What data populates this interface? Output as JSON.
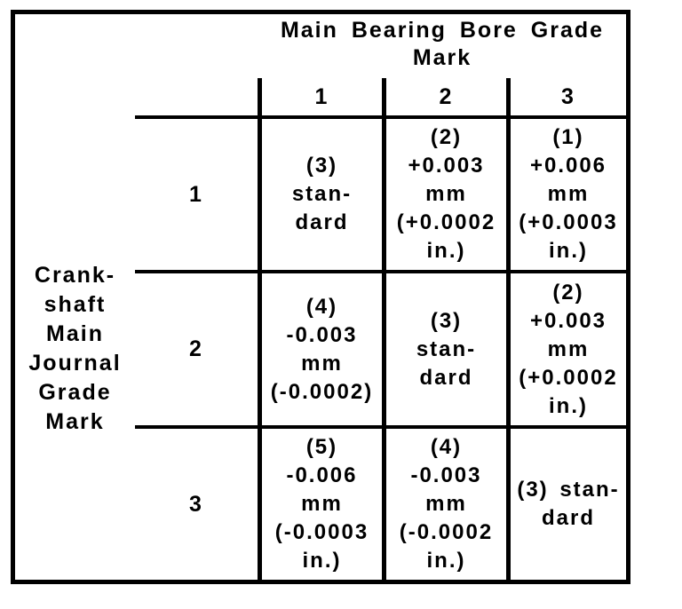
{
  "colors": {
    "ink": "#000000",
    "background": "#ffffff"
  },
  "table": {
    "column_group_title": "Main Bearing Bore Grade Mark",
    "row_group_title": "Crank-\nshaft\nMain\nJournal\nGrade\nMark",
    "column_headers": [
      "1",
      "2",
      "3"
    ],
    "row_headers": [
      "1",
      "2",
      "3"
    ],
    "cells": [
      [
        "(3)\nstan-\ndard",
        "(2)\n+0.003\nmm\n(+0.0002\nin.)",
        "(1)\n+0.006\nmm\n(+0.0003\nin.)"
      ],
      [
        "(4)\n-0.003\nmm\n(-0.0002)",
        "(3)\nstan-\ndard",
        "(2)\n+0.003\nmm\n(+0.0002\nin.)"
      ],
      [
        "(5)\n-0.006\nmm\n(-0.0003\nin.)",
        "(4)\n-0.003\nmm\n(-0.0002\nin.)",
        "(3) stan-\ndard"
      ]
    ]
  }
}
